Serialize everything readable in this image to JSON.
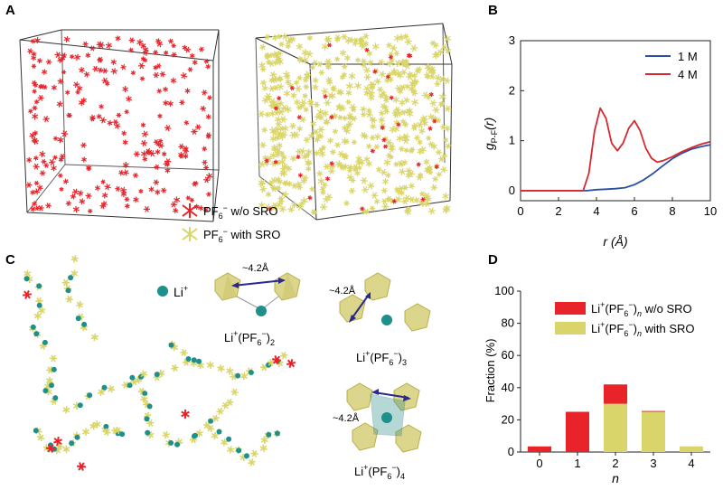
{
  "panels": {
    "a": "A",
    "b": "B",
    "c": "C",
    "d": "D"
  },
  "colors": {
    "red": "#e8232a",
    "yellow": "#d9d56a",
    "teal": "#1f8f8c",
    "blue": "#2b4fa3",
    "navy": "#2a2a8c"
  },
  "panel_a": {
    "legend": [
      {
        "label_pre": "PF",
        "sub": "6",
        "sup": "−",
        "label_post": " w/o SRO",
        "color": "#e8232a"
      },
      {
        "label_pre": "PF",
        "sub": "6",
        "sup": "−",
        "label_post": " with SRO",
        "color": "#d9d56a"
      }
    ]
  },
  "panel_c": {
    "li_label": "Li",
    "li_sup": "+",
    "distance_label": "~4.2Å",
    "cluster_labels": [
      {
        "pre": "Li",
        "sup1": "+",
        "mid": "(PF",
        "sub1": "6",
        "sup2": "−",
        "post": ")",
        "sub2": "2"
      },
      {
        "pre": "Li",
        "sup1": "+",
        "mid": "(PF",
        "sub1": "6",
        "sup2": "−",
        "post": ")",
        "sub2": "3"
      },
      {
        "pre": "Li",
        "sup1": "+",
        "mid": "(PF",
        "sub1": "6",
        "sup2": "−",
        "post": ")",
        "sub2": "4"
      }
    ]
  },
  "chart_data": [
    {
      "panel": "B",
      "type": "line",
      "ylabel": "g",
      "ylabel_sub": "P-F",
      "ylabel_arg": "(r)",
      "xlabel": "r (Å)",
      "xlim": [
        0,
        10
      ],
      "ylim": [
        -0.2,
        3
      ],
      "xticks": [
        0,
        2,
        4,
        6,
        8,
        10
      ],
      "yticks": [
        0,
        1,
        2,
        3
      ],
      "legend_position": "top-right",
      "series": [
        {
          "name": "1 M",
          "color": "#2b4fa3",
          "x": [
            0,
            3.5,
            4.0,
            4.5,
            5.0,
            5.5,
            6.0,
            6.5,
            7.0,
            7.5,
            8.0,
            8.5,
            9.0,
            9.5,
            10.0
          ],
          "y": [
            0,
            0,
            0.02,
            0.03,
            0.04,
            0.06,
            0.12,
            0.22,
            0.35,
            0.5,
            0.64,
            0.75,
            0.83,
            0.88,
            0.92
          ]
        },
        {
          "name": "4 M",
          "color": "#d42a2f",
          "x": [
            0,
            3.3,
            3.6,
            3.9,
            4.2,
            4.5,
            4.8,
            5.1,
            5.4,
            5.7,
            6.0,
            6.3,
            6.6,
            6.9,
            7.2,
            7.5,
            8.0,
            8.5,
            9.0,
            9.5,
            10.0
          ],
          "y": [
            0,
            0,
            0.35,
            1.2,
            1.65,
            1.45,
            0.95,
            0.8,
            0.95,
            1.25,
            1.4,
            1.2,
            0.85,
            0.65,
            0.57,
            0.6,
            0.68,
            0.78,
            0.86,
            0.93,
            0.98
          ]
        }
      ]
    },
    {
      "panel": "D",
      "type": "bar",
      "stacked": true,
      "ylabel": "Fraction (%)",
      "xlabel": "n",
      "categories": [
        "0",
        "1",
        "2",
        "3",
        "4"
      ],
      "ylim": [
        0,
        100
      ],
      "yticks": [
        0,
        20,
        40,
        60,
        80,
        100
      ],
      "legend_position": "top-right",
      "series": [
        {
          "name": "Li+(PF6−)n with SRO",
          "label_pre": "Li",
          "label_sup1": "+",
          "label_mid": "(PF",
          "label_sub1": "6",
          "label_sup2": "−",
          "label_post": ")",
          "label_sub2": "n",
          "label_tail": " with SRO",
          "color": "#d9d56a",
          "values": [
            0,
            0,
            30,
            25,
            3.5
          ]
        },
        {
          "name": "Li+(PF6−)n w/o SRO",
          "label_pre": "Li",
          "label_sup1": "+",
          "label_mid": "(PF",
          "label_sub1": "6",
          "label_sup2": "−",
          "label_post": ")",
          "label_sub2": "n",
          "label_tail": " w/o SRO",
          "color": "#e8232a",
          "values": [
            3.5,
            25,
            12,
            0.5,
            0
          ]
        }
      ]
    }
  ]
}
